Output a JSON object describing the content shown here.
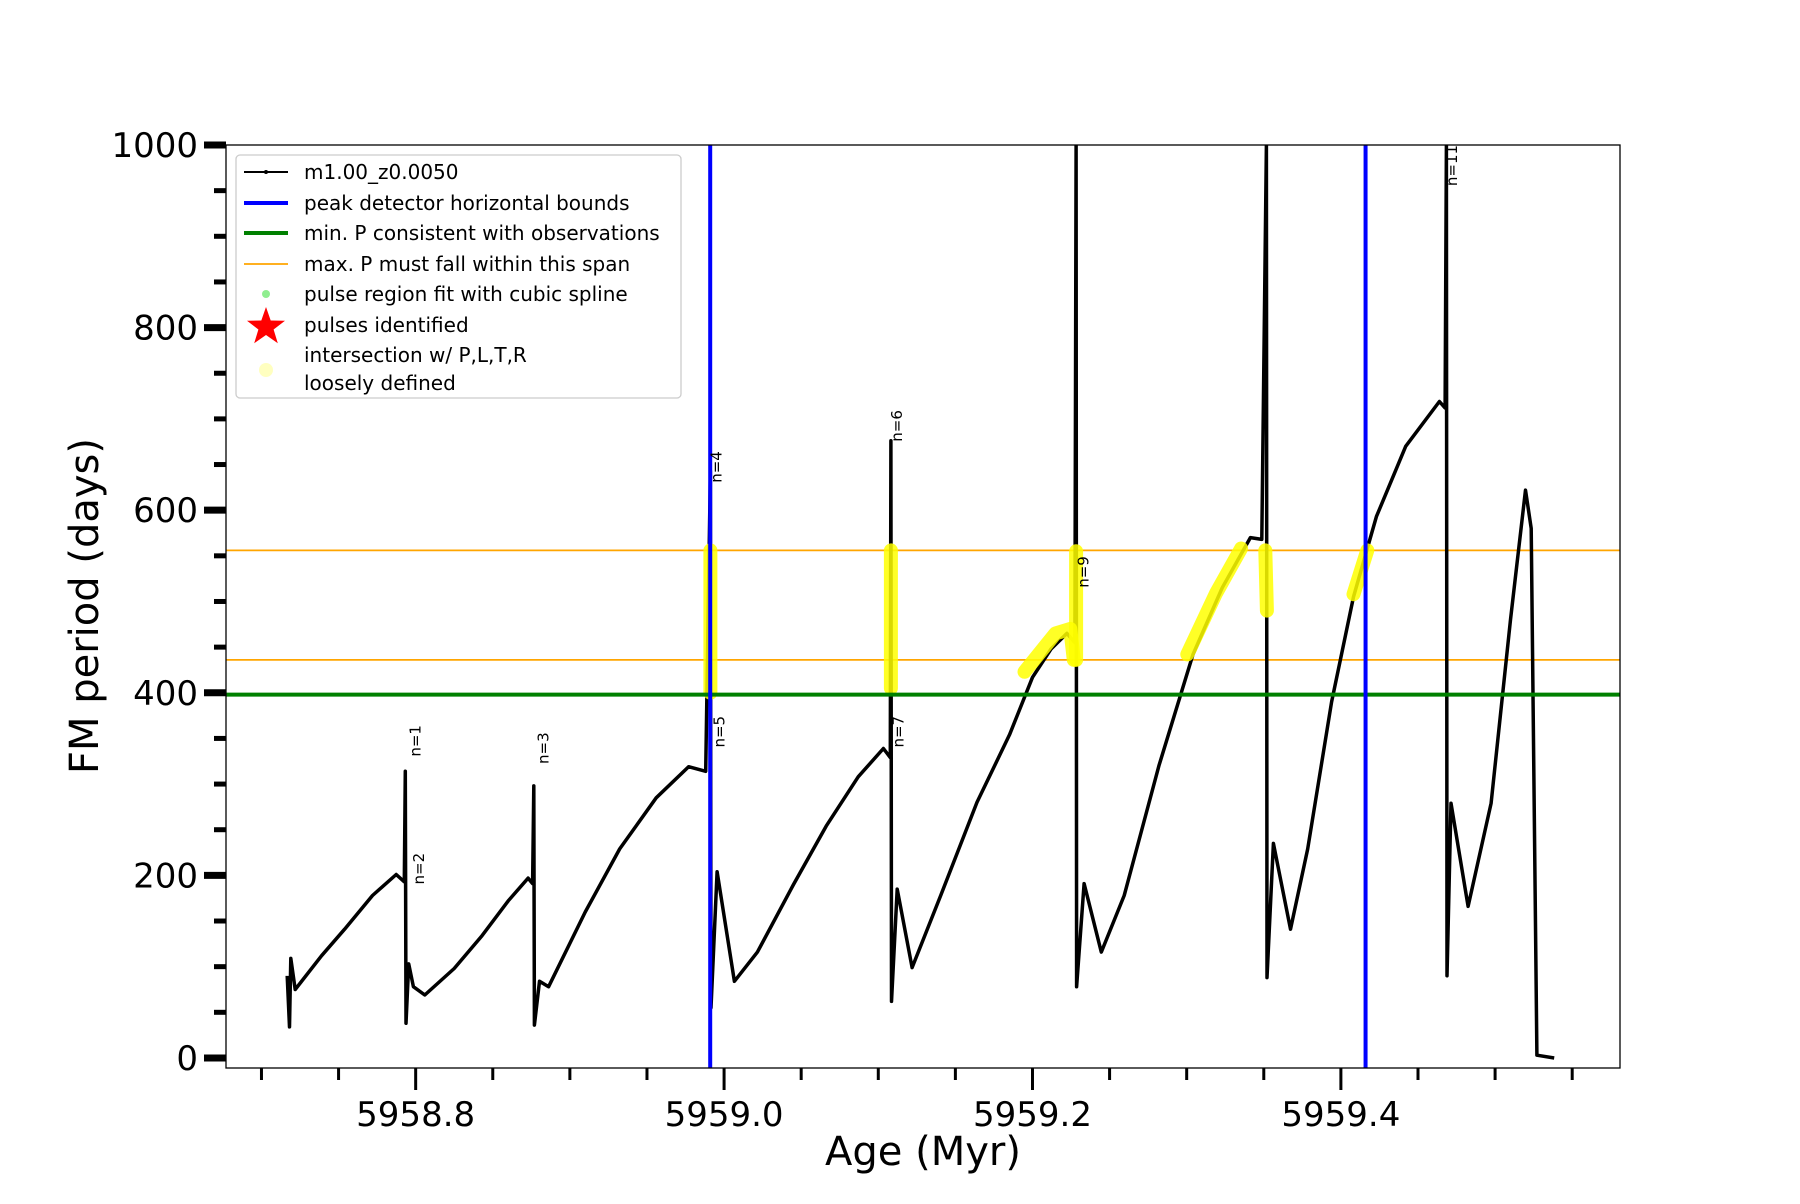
{
  "chart_data": {
    "type": "line",
    "title": "",
    "xlabel": "Age (Myr)",
    "ylabel": "FM period (days)",
    "xlim": [
      5958.677,
      5959.581
    ],
    "ylim": [
      -11,
      1000
    ],
    "xticks": [
      5958.8,
      5959.0,
      5959.2,
      5959.4
    ],
    "xtick_labels": [
      "5958.8",
      "5959.0",
      "5959.2",
      "5959.4"
    ],
    "xminor_step": 0.05,
    "yticks": [
      0,
      200,
      400,
      600,
      800,
      1000
    ],
    "ytick_labels": [
      "0",
      "200",
      "400",
      "600",
      "800",
      "1000"
    ],
    "yminor_step": 50,
    "grid": false,
    "legend_placement": "top-left",
    "series": [
      {
        "name": "m1.00_z0.0050",
        "color": "#000000",
        "points": [
          [
            5958.7167,
            90
          ],
          [
            5958.7182,
            34
          ],
          [
            5958.719,
            109
          ],
          [
            5958.7219,
            75
          ],
          [
            5958.739,
            112
          ],
          [
            5958.7539,
            141
          ],
          [
            5958.772,
            178
          ],
          [
            5958.7874,
            201
          ],
          [
            5958.7926,
            193
          ],
          [
            5958.7933,
            314
          ],
          [
            5958.7937,
            38
          ],
          [
            5958.7955,
            103
          ],
          [
            5958.7985,
            78
          ],
          [
            5958.8059,
            69
          ],
          [
            5958.825,
            98
          ],
          [
            5958.8431,
            134
          ],
          [
            5958.86,
            172
          ],
          [
            5958.8729,
            197
          ],
          [
            5958.8758,
            191
          ],
          [
            5958.8766,
            298
          ],
          [
            5958.877,
            36
          ],
          [
            5958.8803,
            84
          ],
          [
            5958.8862,
            78
          ],
          [
            5958.91,
            160
          ],
          [
            5958.9323,
            229
          ],
          [
            5958.956,
            285
          ],
          [
            5958.977,
            319
          ],
          [
            5958.9881,
            314
          ],
          [
            5958.9911,
            643
          ],
          [
            5958.9915,
            55
          ],
          [
            5958.9955,
            204
          ],
          [
            5959.0067,
            84
          ],
          [
            5959.0216,
            116
          ],
          [
            5959.045,
            190
          ],
          [
            5959.0662,
            254
          ],
          [
            5959.087,
            308
          ],
          [
            5959.1033,
            339
          ],
          [
            5959.1078,
            329
          ],
          [
            5959.1082,
            676
          ],
          [
            5959.1086,
            62
          ],
          [
            5959.1123,
            185
          ],
          [
            5959.1219,
            99
          ],
          [
            5959.1405,
            178
          ],
          [
            5959.164,
            280
          ],
          [
            5959.1851,
            354
          ],
          [
            5959.2,
            417
          ],
          [
            5959.212,
            448
          ],
          [
            5959.2223,
            465
          ],
          [
            5959.2275,
            455
          ],
          [
            5959.2283,
            1000
          ],
          [
            5959.2286,
            78
          ],
          [
            5959.2335,
            191
          ],
          [
            5959.2446,
            116
          ],
          [
            5959.2595,
            178
          ],
          [
            5959.282,
            320
          ],
          [
            5959.3041,
            442
          ],
          [
            5959.323,
            515
          ],
          [
            5959.3413,
            570
          ],
          [
            5959.3487,
            568
          ],
          [
            5959.3517,
            1000
          ],
          [
            5959.3521,
            88
          ],
          [
            5959.3562,
            235
          ],
          [
            5959.3673,
            141
          ],
          [
            5959.3785,
            229
          ],
          [
            5959.394,
            390
          ],
          [
            5959.4082,
            505
          ],
          [
            5959.423,
            593
          ],
          [
            5959.442,
            670
          ],
          [
            5959.4639,
            719
          ],
          [
            5959.4676,
            712
          ],
          [
            5959.4684,
            1000
          ],
          [
            5959.4688,
            90
          ],
          [
            5959.4714,
            279
          ],
          [
            5959.4825,
            166
          ],
          [
            5959.4974,
            279
          ],
          [
            5959.51,
            480
          ],
          [
            5959.5197,
            622
          ],
          [
            5959.5234,
            580
          ],
          [
            5959.5271,
            3
          ],
          [
            5959.5383,
            0
          ]
        ]
      }
    ],
    "vertical_lines": {
      "name": "peak detector horizontal bounds",
      "color": "#0000ff",
      "x": [
        5958.991,
        5959.416
      ]
    },
    "min_period_line": {
      "name": "min. P consistent with observations",
      "color": "#008000",
      "y": 398
    },
    "max_period_span": {
      "name": "max. P must fall within this span",
      "color": "#ffa500",
      "y": [
        436,
        556
      ]
    },
    "intersection_segments": {
      "name": "intersection w/ P,L,T,R loosely defined",
      "color": "#ffff00",
      "segments": [
        [
          [
            5958.9911,
            400
          ],
          [
            5958.9911,
            556
          ]
        ],
        [
          [
            5959.1082,
            405
          ],
          [
            5959.1082,
            556
          ]
        ],
        [
          [
            5959.1948,
            423
          ],
          [
            5959.2149,
            465
          ],
          [
            5959.2245,
            470
          ],
          [
            5959.2268,
            436
          ]
        ],
        [
          [
            5959.2283,
            436
          ],
          [
            5959.2283,
            555
          ]
        ],
        [
          [
            5959.3004,
            442
          ],
          [
            5959.319,
            509
          ],
          [
            5959.3353,
            558
          ]
        ],
        [
          [
            5959.351,
            556
          ],
          [
            5959.352,
            490
          ]
        ],
        [
          [
            5959.4082,
            508
          ],
          [
            5959.4171,
            556
          ]
        ]
      ]
    },
    "annotations": [
      {
        "text": "n=1",
        "x": 5958.8,
        "y": 330
      },
      {
        "text": "n=2",
        "x": 5958.802,
        "y": 190
      },
      {
        "text": "n=3",
        "x": 5958.883,
        "y": 322
      },
      {
        "text": "n=4",
        "x": 5958.995,
        "y": 630
      },
      {
        "text": "n=5",
        "x": 5958.997,
        "y": 340
      },
      {
        "text": "n=6",
        "x": 5959.112,
        "y": 675
      },
      {
        "text": "n=7",
        "x": 5959.113,
        "y": 340
      },
      {
        "text": "n=9",
        "x": 5959.233,
        "y": 515
      },
      {
        "text": "n=11",
        "x": 5959.472,
        "y": 955
      }
    ],
    "legend": [
      {
        "label": "m1.00_z0.0050",
        "kind": "line-marker",
        "color": "#000000"
      },
      {
        "label": "peak detector horizontal bounds",
        "kind": "thick-line",
        "color": "#0000ff"
      },
      {
        "label": "min. P consistent with observations",
        "kind": "thick-line",
        "color": "#008000"
      },
      {
        "label": "max. P must fall within this span",
        "kind": "thin-line",
        "color": "#ffa500"
      },
      {
        "label": "pulse region fit with cubic spline",
        "kind": "dot",
        "color": "#90ee90"
      },
      {
        "label": "pulses identified",
        "kind": "star",
        "color": "#ff0000"
      },
      {
        "label": "intersection w/ P,L,T,R",
        "label2": "loosely defined",
        "kind": "dot",
        "color": "#ffffc0"
      }
    ]
  }
}
